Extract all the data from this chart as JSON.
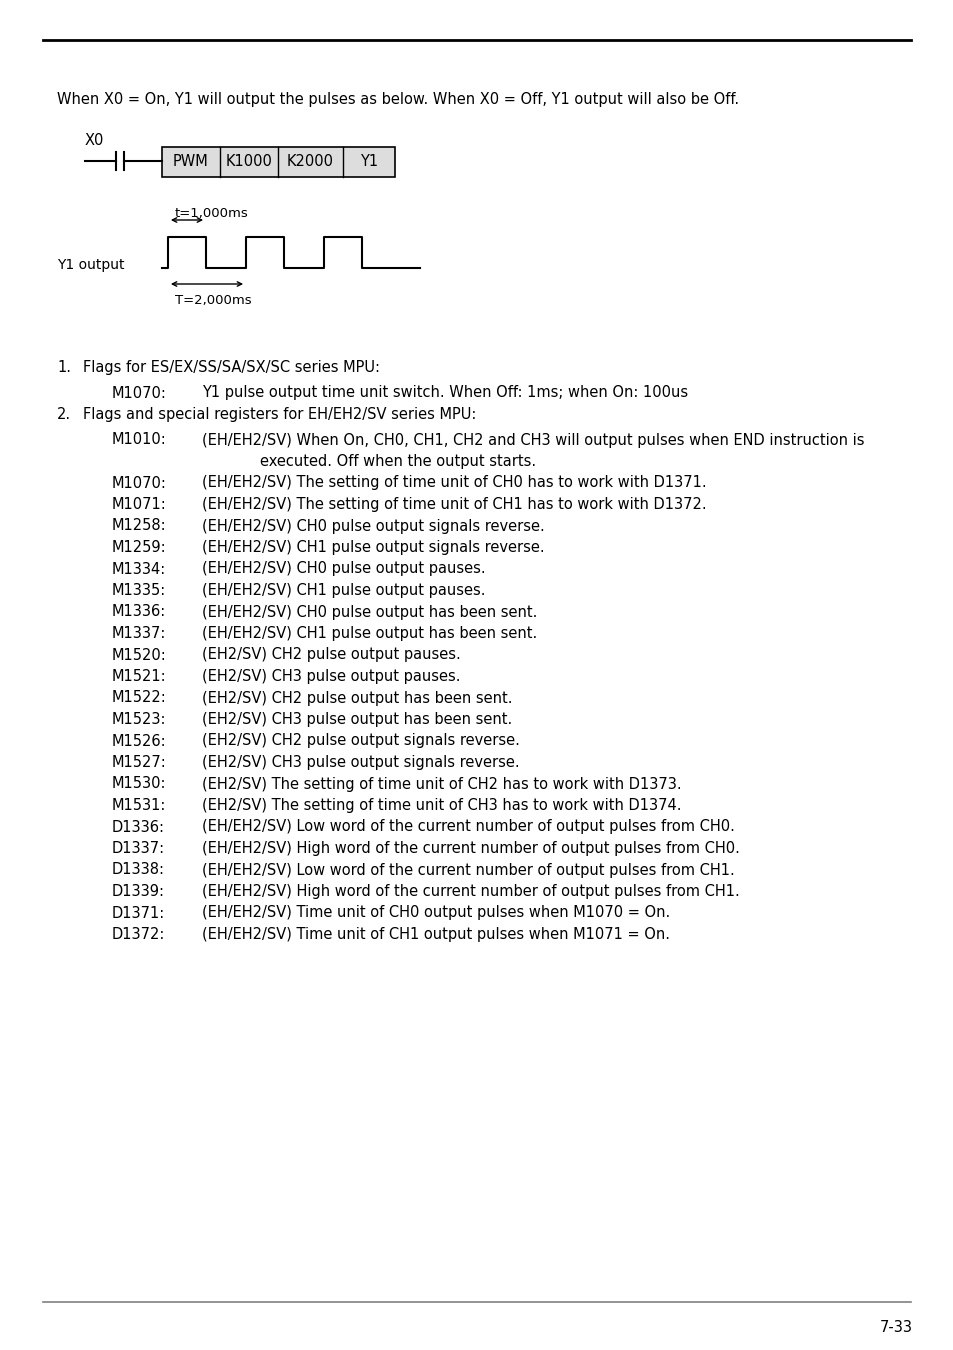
{
  "bg_color": "#ffffff",
  "page_number": "7-33",
  "intro_text": "When X0 = On, Y1 will output the pulses as below. When X0 = Off, Y1 output will also be Off.",
  "list_items": [
    {
      "num": "1.",
      "label": "",
      "text": "Flags for ES/EX/SS/SA/SX/SC series MPU:",
      "type": "header"
    },
    {
      "num": "",
      "label": "M1070:",
      "text": "Y1 pulse output time unit switch. When Off: 1ms; when On: 100us",
      "type": "entry"
    },
    {
      "num": "2.",
      "label": "",
      "text": "Flags and special registers for EH/EH2/SV series MPU:",
      "type": "header"
    },
    {
      "num": "",
      "label": "M1010:",
      "text": "(EH/EH2/SV) When On, CH0, CH1, CH2 and CH3 will output pulses when END instruction is",
      "type": "entry"
    },
    {
      "num": "",
      "label": "",
      "text": "executed. Off when the output starts.",
      "type": "continuation"
    },
    {
      "num": "",
      "label": "M1070:",
      "text": "(EH/EH2/SV) The setting of time unit of CH0 has to work with D1371.",
      "type": "entry"
    },
    {
      "num": "",
      "label": "M1071:",
      "text": "(EH/EH2/SV) The setting of time unit of CH1 has to work with D1372.",
      "type": "entry"
    },
    {
      "num": "",
      "label": "M1258:",
      "text": "(EH/EH2/SV) CH0 pulse output signals reverse.",
      "type": "entry"
    },
    {
      "num": "",
      "label": "M1259:",
      "text": "(EH/EH2/SV) CH1 pulse output signals reverse.",
      "type": "entry"
    },
    {
      "num": "",
      "label": "M1334:",
      "text": "(EH/EH2/SV) CH0 pulse output pauses.",
      "type": "entry"
    },
    {
      "num": "",
      "label": "M1335:",
      "text": "(EH/EH2/SV) CH1 pulse output pauses.",
      "type": "entry"
    },
    {
      "num": "",
      "label": "M1336:",
      "text": "(EH/EH2/SV) CH0 pulse output has been sent.",
      "type": "entry"
    },
    {
      "num": "",
      "label": "M1337:",
      "text": "(EH/EH2/SV) CH1 pulse output has been sent.",
      "type": "entry"
    },
    {
      "num": "",
      "label": "M1520:",
      "text": "(EH2/SV) CH2 pulse output pauses.",
      "type": "entry"
    },
    {
      "num": "",
      "label": "M1521:",
      "text": "(EH2/SV) CH3 pulse output pauses.",
      "type": "entry"
    },
    {
      "num": "",
      "label": "M1522:",
      "text": "(EH2/SV) CH2 pulse output has been sent.",
      "type": "entry"
    },
    {
      "num": "",
      "label": "M1523:",
      "text": "(EH2/SV) CH3 pulse output has been sent.",
      "type": "entry"
    },
    {
      "num": "",
      "label": "M1526:",
      "text": "(EH2/SV) CH2 pulse output signals reverse.",
      "type": "entry"
    },
    {
      "num": "",
      "label": "M1527:",
      "text": "(EH2/SV) CH3 pulse output signals reverse.",
      "type": "entry"
    },
    {
      "num": "",
      "label": "M1530:",
      "text": "(EH2/SV) The setting of time unit of CH2 has to work with D1373.",
      "type": "entry"
    },
    {
      "num": "",
      "label": "M1531:",
      "text": "(EH2/SV) The setting of time unit of CH3 has to work with D1374.",
      "type": "entry"
    },
    {
      "num": "",
      "label": "D1336:",
      "text": "(EH/EH2/SV) Low word of the current number of output pulses from CH0.",
      "type": "entry"
    },
    {
      "num": "",
      "label": "D1337:",
      "text": "(EH/EH2/SV) High word of the current number of output pulses from CH0.",
      "type": "entry"
    },
    {
      "num": "",
      "label": "D1338:",
      "text": "(EH/EH2/SV) Low word of the current number of output pulses from CH1.",
      "type": "entry"
    },
    {
      "num": "",
      "label": "D1339:",
      "text": "(EH/EH2/SV) High word of the current number of output pulses from CH1.",
      "type": "entry"
    },
    {
      "num": "",
      "label": "D1371:",
      "text": "(EH/EH2/SV) Time unit of CH0 output pulses when M1070 = On.",
      "type": "entry"
    },
    {
      "num": "",
      "label": "D1372:",
      "text": "(EH/EH2/SV) Time unit of CH1 output pulses when M1071 = On.",
      "type": "entry"
    }
  ]
}
